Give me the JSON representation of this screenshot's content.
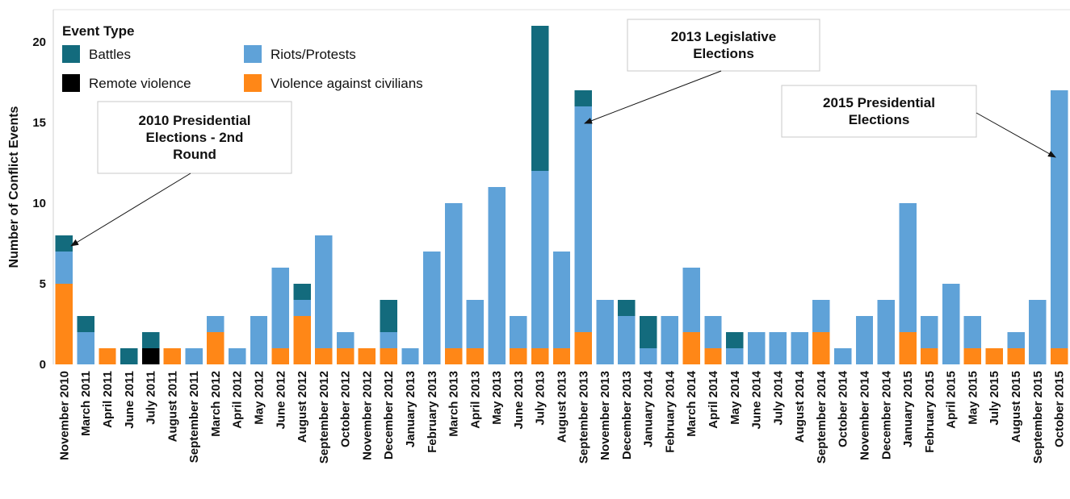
{
  "chart_data": {
    "type": "bar",
    "stacked": true,
    "ylabel": "Number of Conflict Events",
    "ylim": [
      0,
      22
    ],
    "yticks": [
      0,
      5,
      10,
      15,
      20
    ],
    "grid": false,
    "legend": {
      "title": "Event Type",
      "placement": "top-left",
      "entries": [
        {
          "label": "Battles",
          "color": "#136b7d"
        },
        {
          "label": "Riots/Protests",
          "color": "#5fa2d8"
        },
        {
          "label": "Remote violence",
          "color": "#000000"
        },
        {
          "label": "Violence against civilians",
          "color": "#ff8717"
        }
      ]
    },
    "categories": [
      "November 2010",
      "March 2011",
      "April 2011",
      "June 2011",
      "July 2011",
      "August 2011",
      "September 2011",
      "March 2012",
      "April 2012",
      "May 2012",
      "June 2012",
      "August 2012",
      "September 2012",
      "October 2012",
      "November 2012",
      "December 2012",
      "January 2013",
      "February 2013",
      "March 2013",
      "April 2013",
      "May 2013",
      "June 2013",
      "July 2013",
      "August 2013",
      "September 2013",
      "November 2013",
      "December 2013",
      "January 2014",
      "February 2014",
      "March 2014",
      "April 2014",
      "May 2014",
      "June 2014",
      "July 2014",
      "August 2014",
      "September 2014",
      "October 2014",
      "November 2014",
      "December 2014",
      "January 2015",
      "February 2015",
      "April 2015",
      "May 2015",
      "July 2015",
      "August 2015",
      "September 2015",
      "October 2015"
    ],
    "series": [
      {
        "name": "Violence against civilians",
        "color": "#ff8717",
        "values": [
          5,
          0,
          1,
          0,
          0,
          1,
          0,
          2,
          0,
          0,
          1,
          3,
          1,
          1,
          1,
          1,
          0,
          0,
          1,
          1,
          0,
          1,
          1,
          1,
          2,
          0,
          0,
          0,
          0,
          2,
          1,
          0,
          0,
          0,
          0,
          2,
          0,
          0,
          0,
          2,
          1,
          0,
          1,
          1,
          1,
          0,
          1
        ]
      },
      {
        "name": "Remote violence",
        "color": "#000000",
        "values": [
          0,
          0,
          0,
          0,
          1,
          0,
          0,
          0,
          0,
          0,
          0,
          0,
          0,
          0,
          0,
          0,
          0,
          0,
          0,
          0,
          0,
          0,
          0,
          0,
          0,
          0,
          0,
          0,
          0,
          0,
          0,
          0,
          0,
          0,
          0,
          0,
          0,
          0,
          0,
          0,
          0,
          0,
          0,
          0,
          0,
          0,
          0
        ]
      },
      {
        "name": "Riots/Protests",
        "color": "#5fa2d8",
        "values": [
          2,
          2,
          0,
          0,
          0,
          0,
          1,
          1,
          1,
          3,
          5,
          1,
          7,
          1,
          0,
          1,
          1,
          7,
          9,
          3,
          11,
          2,
          11,
          6,
          14,
          4,
          3,
          1,
          3,
          4,
          2,
          1,
          2,
          2,
          2,
          2,
          1,
          3,
          4,
          8,
          2,
          5,
          2,
          0,
          1,
          4,
          16
        ]
      },
      {
        "name": "Battles",
        "color": "#136b7d",
        "values": [
          1,
          1,
          0,
          1,
          1,
          0,
          0,
          0,
          0,
          0,
          0,
          1,
          0,
          0,
          0,
          2,
          0,
          0,
          0,
          0,
          0,
          0,
          9,
          0,
          1,
          0,
          1,
          2,
          0,
          0,
          0,
          1,
          0,
          0,
          0,
          0,
          0,
          0,
          0,
          0,
          0,
          0,
          0,
          0,
          0,
          0,
          0
        ]
      }
    ],
    "annotations": [
      {
        "lines": [
          "2010 Presidential",
          "Elections - 2nd",
          "Round"
        ],
        "target_category": "November 2010",
        "target_value": 8
      },
      {
        "lines": [
          "2013 Legislative",
          "Elections"
        ],
        "target_category": "September 2013",
        "target_value": 16
      },
      {
        "lines": [
          "2015 Presidential",
          "Elections"
        ],
        "target_category": "October 2015",
        "target_value": 16
      }
    ]
  }
}
